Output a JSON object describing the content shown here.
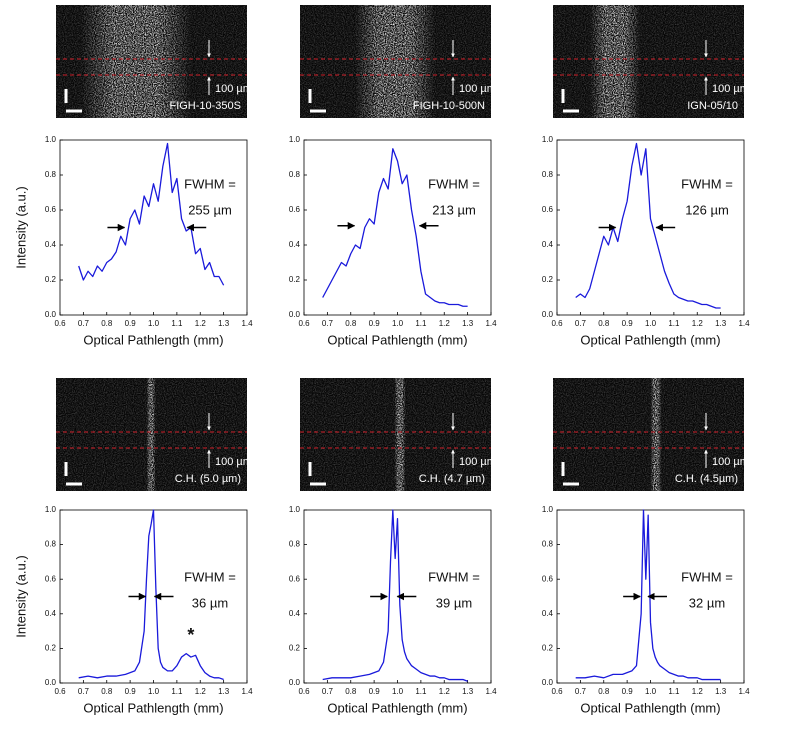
{
  "chart_data": [
    {
      "type": "line",
      "image_label": "FIGH-10-350S",
      "scale_label": "100 µm",
      "fwhm_label": "FWHM =",
      "fwhm_value": "255 µm",
      "xlabel": "Optical Pathlength (mm)",
      "ylabel": "Intensity (a.u.)",
      "xlim": [
        0.6,
        1.4
      ],
      "ylim": [
        0,
        1
      ],
      "xticks": [
        0.6,
        0.7,
        0.8,
        0.9,
        {
          "value": 1,
          "label": "1.0"
        },
        1.1,
        1.2,
        1.3,
        1.4
      ],
      "yticks": [
        {
          "value": 0,
          "label": "0.0"
        },
        0.2,
        0.4,
        0.6,
        0.8,
        {
          "value": 1,
          "label": "1.0"
        }
      ],
      "x": [
        0.68,
        0.7,
        0.72,
        0.74,
        0.76,
        0.78,
        0.8,
        0.82,
        0.84,
        0.86,
        0.88,
        0.9,
        0.92,
        0.94,
        0.96,
        0.98,
        1.0,
        1.02,
        1.04,
        1.06,
        1.08,
        1.1,
        1.12,
        1.14,
        1.16,
        1.18,
        1.2,
        1.22,
        1.24,
        1.26,
        1.28,
        1.3
      ],
      "series": [
        {
          "color": "#1a1adb",
          "values": [
            0.28,
            0.2,
            0.25,
            0.22,
            0.28,
            0.25,
            0.3,
            0.32,
            0.36,
            0.45,
            0.4,
            0.55,
            0.6,
            0.52,
            0.68,
            0.62,
            0.75,
            0.65,
            0.85,
            0.98,
            0.7,
            0.78,
            0.55,
            0.48,
            0.5,
            0.35,
            0.38,
            0.26,
            0.3,
            0.22,
            0.22,
            0.17
          ]
        }
      ]
    },
    {
      "type": "line",
      "image_label": "FIGH-10-500N",
      "scale_label": "100 µm",
      "fwhm_label": "FWHM =",
      "fwhm_value": "213 µm",
      "xlabel": "Optical Pathlength (mm)",
      "xlim": [
        0.6,
        1.4
      ],
      "ylim": [
        0,
        1
      ],
      "xticks": [
        0.6,
        0.7,
        0.8,
        0.9,
        {
          "value": 1,
          "label": "1.0"
        },
        1.1,
        1.2,
        1.3,
        1.4
      ],
      "yticks": [
        {
          "value": 0,
          "label": "0.0"
        },
        0.2,
        0.4,
        0.6,
        0.8,
        {
          "value": 1,
          "label": "1.0"
        }
      ],
      "x": [
        0.68,
        0.7,
        0.72,
        0.74,
        0.76,
        0.78,
        0.8,
        0.82,
        0.84,
        0.86,
        0.88,
        0.9,
        0.92,
        0.94,
        0.96,
        0.98,
        1.0,
        1.02,
        1.04,
        1.06,
        1.08,
        1.1,
        1.12,
        1.14,
        1.16,
        1.18,
        1.2,
        1.22,
        1.24,
        1.26,
        1.28,
        1.3
      ],
      "series": [
        {
          "color": "#1a1adb",
          "values": [
            0.1,
            0.15,
            0.2,
            0.25,
            0.3,
            0.28,
            0.35,
            0.4,
            0.38,
            0.5,
            0.55,
            0.52,
            0.7,
            0.78,
            0.72,
            0.95,
            0.88,
            0.75,
            0.8,
            0.6,
            0.45,
            0.25,
            0.12,
            0.1,
            0.08,
            0.07,
            0.07,
            0.06,
            0.06,
            0.06,
            0.05,
            0.05
          ]
        }
      ]
    },
    {
      "type": "line",
      "image_label": "IGN-05/10",
      "scale_label": "100 µm",
      "fwhm_label": "FWHM =",
      "fwhm_value": "126 µm",
      "xlabel": "Optical Pathlength (mm)",
      "xlim": [
        0.6,
        1.4
      ],
      "ylim": [
        0,
        1
      ],
      "xticks": [
        0.6,
        0.7,
        0.8,
        0.9,
        {
          "value": 1,
          "label": "1.0"
        },
        1.1,
        1.2,
        1.3,
        1.4
      ],
      "yticks": [
        {
          "value": 0,
          "label": "0.0"
        },
        0.2,
        0.4,
        0.6,
        0.8,
        {
          "value": 1,
          "label": "1.0"
        }
      ],
      "x": [
        0.68,
        0.7,
        0.72,
        0.74,
        0.76,
        0.78,
        0.8,
        0.82,
        0.84,
        0.86,
        0.88,
        0.9,
        0.92,
        0.94,
        0.96,
        0.98,
        1.0,
        1.02,
        1.04,
        1.06,
        1.08,
        1.1,
        1.12,
        1.14,
        1.16,
        1.18,
        1.2,
        1.22,
        1.24,
        1.26,
        1.28,
        1.3
      ],
      "series": [
        {
          "color": "#1a1adb",
          "values": [
            0.1,
            0.12,
            0.1,
            0.15,
            0.25,
            0.35,
            0.45,
            0.4,
            0.5,
            0.42,
            0.55,
            0.65,
            0.85,
            0.98,
            0.8,
            0.95,
            0.55,
            0.45,
            0.35,
            0.25,
            0.18,
            0.12,
            0.1,
            0.09,
            0.08,
            0.08,
            0.07,
            0.06,
            0.06,
            0.05,
            0.04,
            0.04
          ]
        }
      ]
    },
    {
      "type": "line",
      "image_label": "C.H. (5.0 µm)",
      "scale_label": "100 µm",
      "fwhm_label": "FWHM =",
      "fwhm_value": "36 µm",
      "annotation": "*",
      "xlabel": "Optical Pathlength (mm)",
      "ylabel": "Intensity (a.u.)",
      "xlim": [
        0.6,
        1.4
      ],
      "ylim": [
        0,
        1
      ],
      "xticks": [
        0.6,
        0.7,
        0.8,
        0.9,
        {
          "value": 1,
          "label": "1.0"
        },
        1.1,
        1.2,
        1.3,
        1.4
      ],
      "yticks": [
        {
          "value": 0,
          "label": "0.0"
        },
        0.2,
        0.4,
        0.6,
        0.8,
        {
          "value": 1,
          "label": "1.0"
        }
      ],
      "x": [
        0.68,
        0.72,
        0.76,
        0.8,
        0.84,
        0.88,
        0.92,
        0.94,
        0.96,
        0.97,
        0.98,
        0.99,
        1.0,
        1.01,
        1.02,
        1.03,
        1.04,
        1.06,
        1.08,
        1.1,
        1.12,
        1.14,
        1.16,
        1.18,
        1.2,
        1.22,
        1.24,
        1.26,
        1.28,
        1.3
      ],
      "series": [
        {
          "color": "#1a1adb",
          "values": [
            0.03,
            0.04,
            0.03,
            0.04,
            0.04,
            0.05,
            0.07,
            0.12,
            0.3,
            0.6,
            0.85,
            0.92,
            1.0,
            0.55,
            0.2,
            0.12,
            0.09,
            0.07,
            0.07,
            0.1,
            0.15,
            0.17,
            0.15,
            0.16,
            0.1,
            0.06,
            0.04,
            0.03,
            0.03,
            0.02
          ]
        }
      ]
    },
    {
      "type": "line",
      "image_label": "C.H. (4.7 µm)",
      "scale_label": "100 µm",
      "fwhm_label": "FWHM =",
      "fwhm_value": "39 µm",
      "xlabel": "Optical Pathlength (mm)",
      "xlim": [
        0.6,
        1.4
      ],
      "ylim": [
        0,
        1
      ],
      "xticks": [
        0.6,
        0.7,
        0.8,
        0.9,
        {
          "value": 1,
          "label": "1.0"
        },
        1.1,
        1.2,
        1.3,
        1.4
      ],
      "yticks": [
        {
          "value": 0,
          "label": "0.0"
        },
        0.2,
        0.4,
        0.6,
        0.8,
        {
          "value": 1,
          "label": "1.0"
        }
      ],
      "x": [
        0.68,
        0.72,
        0.76,
        0.8,
        0.84,
        0.88,
        0.92,
        0.94,
        0.96,
        0.97,
        0.98,
        0.99,
        1.0,
        1.01,
        1.02,
        1.03,
        1.04,
        1.06,
        1.08,
        1.1,
        1.12,
        1.14,
        1.16,
        1.18,
        1.2,
        1.22,
        1.24,
        1.26,
        1.28,
        1.3
      ],
      "series": [
        {
          "color": "#1a1adb",
          "values": [
            0.02,
            0.03,
            0.03,
            0.03,
            0.04,
            0.05,
            0.07,
            0.12,
            0.3,
            0.7,
            1.0,
            0.72,
            0.95,
            0.45,
            0.25,
            0.18,
            0.14,
            0.1,
            0.08,
            0.06,
            0.05,
            0.04,
            0.04,
            0.03,
            0.03,
            0.02,
            0.02,
            0.02,
            0.02,
            0.01
          ]
        }
      ]
    },
    {
      "type": "line",
      "image_label": "C.H. (4.5µm)",
      "scale_label": "100 µm",
      "fwhm_label": "FWHM =",
      "fwhm_value": "32 µm",
      "xlabel": "Optical Pathlength (mm)",
      "xlim": [
        0.6,
        1.4
      ],
      "ylim": [
        0,
        1
      ],
      "xticks": [
        0.6,
        0.7,
        0.8,
        0.9,
        {
          "value": 1,
          "label": "1.0"
        },
        1.1,
        1.2,
        1.3,
        1.4
      ],
      "yticks": [
        {
          "value": 0,
          "label": "0.0"
        },
        0.2,
        0.4,
        0.6,
        0.8,
        {
          "value": 1,
          "label": "1.0"
        }
      ],
      "x": [
        0.68,
        0.72,
        0.76,
        0.8,
        0.84,
        0.88,
        0.92,
        0.94,
        0.96,
        0.97,
        0.98,
        0.99,
        1.0,
        1.01,
        1.02,
        1.03,
        1.04,
        1.06,
        1.08,
        1.1,
        1.12,
        1.14,
        1.16,
        1.18,
        1.2,
        1.22,
        1.24,
        1.26,
        1.28,
        1.3
      ],
      "series": [
        {
          "color": "#1a1adb",
          "values": [
            0.03,
            0.03,
            0.04,
            0.03,
            0.05,
            0.05,
            0.07,
            0.1,
            0.4,
            1.0,
            0.6,
            0.97,
            0.35,
            0.2,
            0.15,
            0.12,
            0.1,
            0.08,
            0.06,
            0.05,
            0.04,
            0.04,
            0.03,
            0.03,
            0.03,
            0.02,
            0.02,
            0.02,
            0.02,
            0.02
          ]
        }
      ]
    }
  ]
}
